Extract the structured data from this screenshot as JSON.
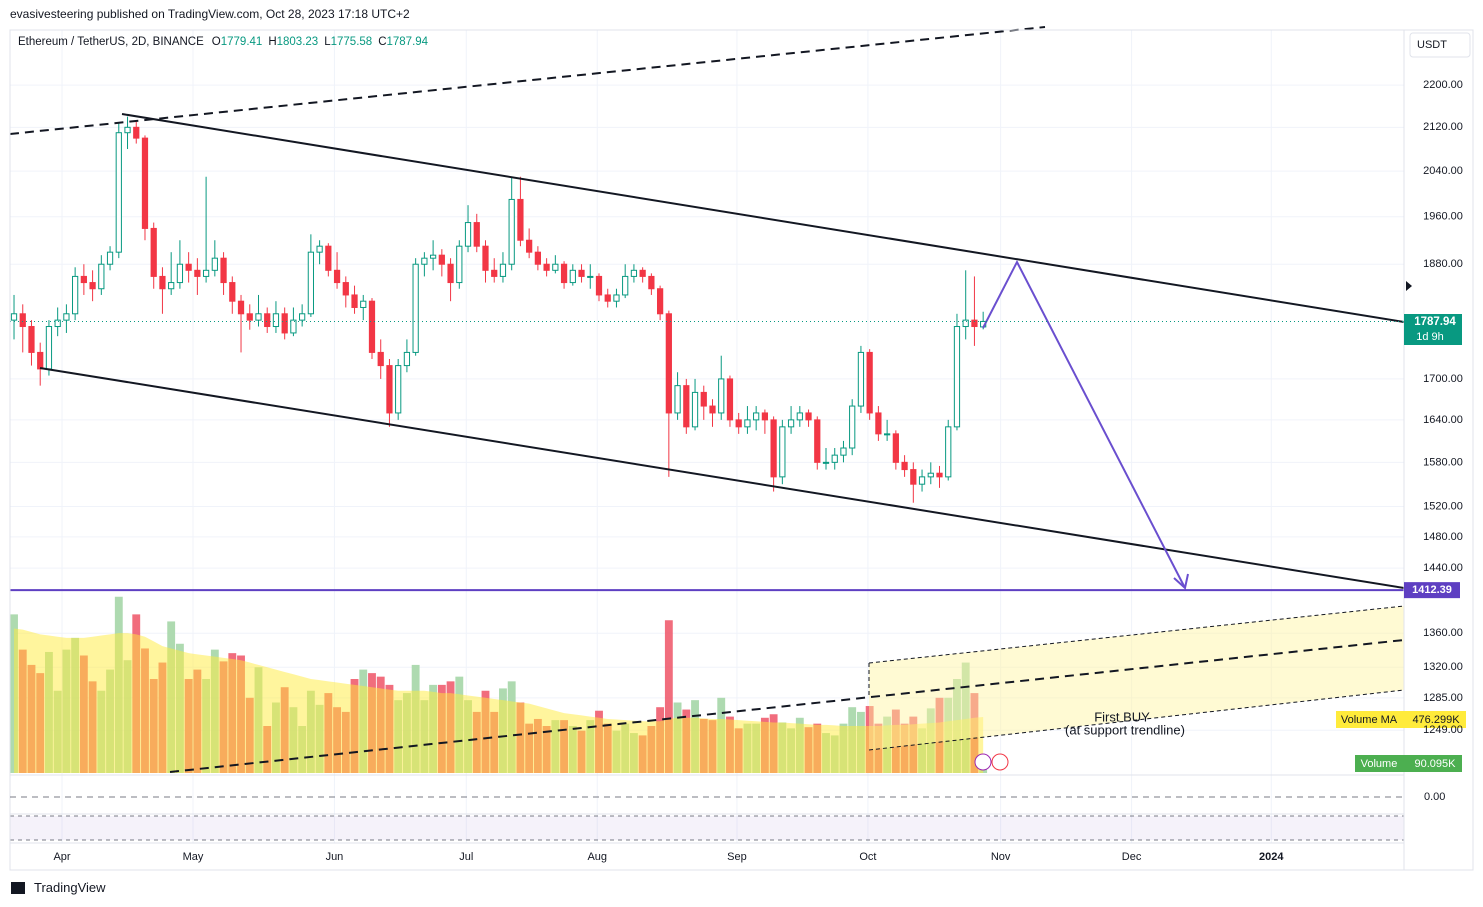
{
  "header": "evasivesteering published on TradingView.com, Oct 28, 2023 17:18 UTC+2",
  "footer": "TradingView",
  "chart_data": {
    "type": "candlestick",
    "title": "Ethereum / TetherUS, 2D, BINANCE",
    "ohlc_letters": [
      "O",
      "H",
      "L",
      "C"
    ],
    "currency": "USDT",
    "countdown": "1d 9h",
    "annotation": [
      "First BUY",
      "(at support trendline)"
    ],
    "hline": 1412.39,
    "volume_name": "Volume",
    "volume_last_label": "90.095K",
    "ma_name": "Volume MA",
    "ma_last_label": "476.299K",
    "log_scale": true,
    "grid": true,
    "up_color": "#089981",
    "down_color": "#f23645",
    "hline_color": "#5e3fc2",
    "ylim": [
      1203,
      2309
    ],
    "yticks": [
      {
        "value": 2200,
        "label": "2200.00"
      },
      {
        "value": 2120,
        "label": "2120.00"
      },
      {
        "value": 2040,
        "label": "2040.00"
      },
      {
        "value": 1960,
        "label": "1960.00"
      },
      {
        "value": 1880,
        "label": "1880.00"
      },
      {
        "value": 1700,
        "label": "1700.00"
      },
      {
        "value": 1640,
        "label": "1640.00"
      },
      {
        "value": 1580,
        "label": "1580.00"
      },
      {
        "value": 1520,
        "label": "1520.00"
      },
      {
        "value": 1480,
        "label": "1480.00"
      },
      {
        "value": 1440,
        "label": "1440.00"
      },
      {
        "value": 1360,
        "label": "1360.00"
      },
      {
        "value": 1320,
        "label": "1320.00"
      },
      {
        "value": 1285,
        "label": "1285.00"
      },
      {
        "value": 1249,
        "label": "1249.00"
      }
    ],
    "xlim": [
      -0.46,
      159.2
    ],
    "xticks": [
      {
        "value": 5.5,
        "label": "Apr"
      },
      {
        "value": 20.5,
        "label": "May"
      },
      {
        "value": 36.7,
        "label": "Jun"
      },
      {
        "value": 51.8,
        "label": "Jul"
      },
      {
        "value": 66.8,
        "label": "Aug"
      },
      {
        "value": 82.8,
        "label": "Sep"
      },
      {
        "value": 97.8,
        "label": "Oct"
      },
      {
        "value": 113,
        "label": "Nov"
      },
      {
        "value": 128,
        "label": "Dec"
      },
      {
        "value": 144,
        "label": "2024"
      }
    ],
    "osc_zero": {
      "value": 0,
      "label": "0.00"
    },
    "volume_lim": [
      0,
      2000
    ],
    "candles": [
      [
        1790,
        1830,
        1760,
        1800
      ],
      [
        1800,
        1815,
        1740,
        1780
      ],
      [
        1780,
        1790,
        1720,
        1740
      ],
      [
        1740,
        1755,
        1690,
        1715
      ],
      [
        1715,
        1790,
        1705,
        1780
      ],
      [
        1780,
        1810,
        1765,
        1790
      ],
      [
        1790,
        1815,
        1770,
        1800
      ],
      [
        1800,
        1875,
        1790,
        1860
      ],
      [
        1860,
        1880,
        1830,
        1850
      ],
      [
        1850,
        1870,
        1820,
        1840
      ],
      [
        1840,
        1895,
        1830,
        1880
      ],
      [
        1880,
        1910,
        1870,
        1900
      ],
      [
        1900,
        2130,
        1890,
        2110
      ],
      [
        2110,
        2140,
        2080,
        2120
      ],
      [
        2120,
        2130,
        2090,
        2100
      ],
      [
        2100,
        2105,
        1920,
        1940
      ],
      [
        1940,
        1950,
        1840,
        1860
      ],
      [
        1860,
        1875,
        1800,
        1840
      ],
      [
        1840,
        1900,
        1830,
        1850
      ],
      [
        1850,
        1920,
        1840,
        1880
      ],
      [
        1880,
        1900,
        1850,
        1870
      ],
      [
        1870,
        1890,
        1830,
        1860
      ],
      [
        1860,
        2030,
        1850,
        1870
      ],
      [
        1870,
        1920,
        1860,
        1890
      ],
      [
        1890,
        1900,
        1830,
        1850
      ],
      [
        1850,
        1860,
        1800,
        1820
      ],
      [
        1820,
        1830,
        1740,
        1800
      ],
      [
        1800,
        1815,
        1775,
        1790
      ],
      [
        1790,
        1830,
        1780,
        1800
      ],
      [
        1800,
        1810,
        1770,
        1780
      ],
      [
        1780,
        1820,
        1770,
        1800
      ],
      [
        1800,
        1810,
        1760,
        1770
      ],
      [
        1770,
        1810,
        1765,
        1790
      ],
      [
        1790,
        1815,
        1780,
        1800
      ],
      [
        1800,
        1930,
        1795,
        1900
      ],
      [
        1900,
        1920,
        1880,
        1910
      ],
      [
        1910,
        1915,
        1860,
        1870
      ],
      [
        1870,
        1900,
        1840,
        1850
      ],
      [
        1850,
        1860,
        1810,
        1830
      ],
      [
        1830,
        1845,
        1800,
        1810
      ],
      [
        1810,
        1830,
        1790,
        1820
      ],
      [
        1820,
        1825,
        1730,
        1740
      ],
      [
        1740,
        1760,
        1700,
        1720
      ],
      [
        1720,
        1730,
        1630,
        1650
      ],
      [
        1650,
        1730,
        1640,
        1720
      ],
      [
        1720,
        1760,
        1710,
        1740
      ],
      [
        1740,
        1890,
        1735,
        1880
      ],
      [
        1880,
        1900,
        1860,
        1890
      ],
      [
        1890,
        1920,
        1870,
        1895
      ],
      [
        1895,
        1905,
        1860,
        1880
      ],
      [
        1880,
        1890,
        1820,
        1850
      ],
      [
        1850,
        1920,
        1840,
        1910
      ],
      [
        1910,
        1980,
        1900,
        1950
      ],
      [
        1950,
        1965,
        1900,
        1910
      ],
      [
        1910,
        1920,
        1850,
        1870
      ],
      [
        1870,
        1890,
        1850,
        1860
      ],
      [
        1860,
        1900,
        1850,
        1880
      ],
      [
        1880,
        2030,
        1870,
        1990
      ],
      [
        1990,
        2030,
        1910,
        1920
      ],
      [
        1920,
        1940,
        1890,
        1900
      ],
      [
        1900,
        1910,
        1870,
        1880
      ],
      [
        1880,
        1890,
        1860,
        1870
      ],
      [
        1870,
        1895,
        1865,
        1880
      ],
      [
        1880,
        1885,
        1840,
        1850
      ],
      [
        1850,
        1880,
        1845,
        1870
      ],
      [
        1870,
        1880,
        1850,
        1860
      ],
      [
        1860,
        1880,
        1840,
        1860
      ],
      [
        1860,
        1865,
        1820,
        1830
      ],
      [
        1830,
        1840,
        1810,
        1820
      ],
      [
        1820,
        1840,
        1810,
        1830
      ],
      [
        1830,
        1880,
        1825,
        1860
      ],
      [
        1860,
        1880,
        1850,
        1870
      ],
      [
        1870,
        1875,
        1850,
        1860
      ],
      [
        1860,
        1865,
        1830,
        1840
      ],
      [
        1840,
        1845,
        1790,
        1800
      ],
      [
        1800,
        1805,
        1560,
        1650
      ],
      [
        1650,
        1710,
        1640,
        1690
      ],
      [
        1690,
        1700,
        1620,
        1630
      ],
      [
        1630,
        1700,
        1625,
        1680
      ],
      [
        1680,
        1690,
        1640,
        1660
      ],
      [
        1660,
        1670,
        1630,
        1650
      ],
      [
        1650,
        1735,
        1640,
        1700
      ],
      [
        1700,
        1705,
        1630,
        1640
      ],
      [
        1640,
        1650,
        1620,
        1630
      ],
      [
        1630,
        1660,
        1620,
        1640
      ],
      [
        1640,
        1660,
        1625,
        1650
      ],
      [
        1650,
        1655,
        1620,
        1640
      ],
      [
        1640,
        1645,
        1540,
        1560
      ],
      [
        1560,
        1640,
        1550,
        1630
      ],
      [
        1630,
        1660,
        1620,
        1640
      ],
      [
        1640,
        1660,
        1630,
        1650
      ],
      [
        1650,
        1655,
        1630,
        1640
      ],
      [
        1640,
        1645,
        1570,
        1580
      ],
      [
        1580,
        1600,
        1570,
        1580
      ],
      [
        1580,
        1600,
        1570,
        1590
      ],
      [
        1590,
        1610,
        1580,
        1600
      ],
      [
        1600,
        1670,
        1590,
        1660
      ],
      [
        1660,
        1750,
        1650,
        1740
      ],
      [
        1740,
        1745,
        1640,
        1650
      ],
      [
        1650,
        1660,
        1610,
        1620
      ],
      [
        1620,
        1640,
        1610,
        1620
      ],
      [
        1620,
        1625,
        1570,
        1580
      ],
      [
        1580,
        1590,
        1560,
        1570
      ],
      [
        1570,
        1580,
        1525,
        1550
      ],
      [
        1550,
        1570,
        1540,
        1560
      ],
      [
        1560,
        1580,
        1550,
        1565
      ],
      [
        1565,
        1575,
        1545,
        1560
      ],
      [
        1560,
        1640,
        1555,
        1630
      ],
      [
        1630,
        1800,
        1625,
        1780
      ],
      [
        1780,
        1870,
        1760,
        1790
      ],
      [
        1790,
        1860,
        1750,
        1780
      ],
      [
        1779.41,
        1803.23,
        1775.58,
        1787.94
      ]
    ],
    "volume": [
      1350,
      1050,
      920,
      850,
      1030,
      700,
      1050,
      1150,
      1000,
      780,
      700,
      880,
      1500,
      960,
      1350,
      1060,
      800,
      940,
      1290,
      1100,
      800,
      880,
      800,
      1050,
      950,
      1020,
      1000,
      640,
      900,
      400,
      600,
      730,
      560,
      400,
      700,
      580,
      680,
      560,
      520,
      800,
      880,
      850,
      820,
      750,
      620,
      680,
      920,
      620,
      750,
      750,
      780,
      820,
      620,
      520,
      700,
      520,
      720,
      780,
      600,
      420,
      460,
      400,
      450,
      450,
      400,
      360,
      450,
      530,
      420,
      360,
      420,
      340,
      320,
      400,
      560,
      1300,
      600,
      540,
      620,
      460,
      450,
      640,
      480,
      380,
      420,
      420,
      470,
      500,
      430,
      380,
      470,
      390,
      420,
      340,
      320,
      420,
      560,
      520,
      570,
      420,
      480,
      540,
      420,
      480,
      380,
      550,
      640,
      640,
      800,
      940,
      680,
      90.095
    ],
    "volume_ma": [
      1230,
      1220,
      1200,
      1180,
      1170,
      1160,
      1150,
      1150,
      1150,
      1160,
      1170,
      1180,
      1190,
      1190,
      1180,
      1160,
      1120,
      1080,
      1060,
      1040,
      1020,
      1010,
      1000,
      990,
      980,
      970,
      960,
      940,
      920,
      900,
      880,
      860,
      840,
      820,
      800,
      790,
      780,
      770,
      760,
      750,
      740,
      730,
      720,
      710,
      700,
      700,
      700,
      700,
      690,
      680,
      680,
      670,
      660,
      650,
      640,
      630,
      620,
      610,
      600,
      590,
      570,
      550,
      530,
      510,
      500,
      490,
      480,
      470,
      460,
      455,
      450,
      445,
      440,
      440,
      440,
      460,
      470,
      470,
      470,
      465,
      460,
      460,
      455,
      450,
      445,
      440,
      435,
      430,
      430,
      425,
      420,
      415,
      410,
      410,
      405,
      400,
      400,
      400,
      400,
      400,
      405,
      410,
      410,
      415,
      420,
      425,
      430,
      440,
      450,
      460,
      470,
      476.299
    ]
  }
}
